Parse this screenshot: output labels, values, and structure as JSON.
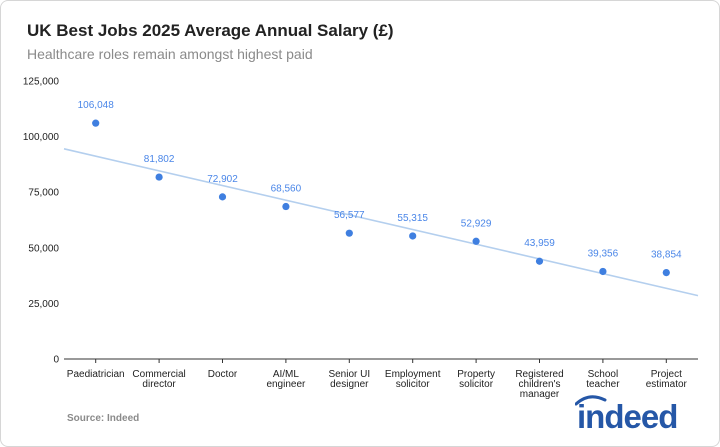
{
  "title": "UK Best Jobs 2025 Average Annual Salary (£)",
  "subtitle": "Healthcare roles remain amongst highest paid",
  "source": "Source: Indeed",
  "logo_text": "indeed",
  "colors": {
    "point": "#3f7fe0",
    "label": "#4a86e8",
    "trendline": "#b4cfee",
    "logo": "#2557a7"
  },
  "chart_data": {
    "type": "scatter",
    "title": "UK Best Jobs 2025 Average Annual Salary (£)",
    "subtitle": "Healthcare roles remain amongst highest paid",
    "categories": [
      [
        "Paediatrician"
      ],
      [
        "Commercial",
        "director"
      ],
      [
        "Doctor"
      ],
      [
        "AI/ML",
        "engineer"
      ],
      [
        "Senior UI",
        "designer"
      ],
      [
        "Employment",
        "solicitor"
      ],
      [
        "Property",
        "solicitor"
      ],
      [
        "Registered",
        "children's",
        "manager"
      ],
      [
        "School",
        "teacher"
      ],
      [
        "Project",
        "estimator"
      ]
    ],
    "values": [
      106048,
      81802,
      72902,
      68560,
      56577,
      55315,
      52929,
      43959,
      39356,
      38854
    ],
    "data_labels": [
      "106,048",
      "81,802",
      "72,902",
      "68,560",
      "56,577",
      "55,315",
      "52,929",
      "43,959",
      "39,356",
      "38,854"
    ],
    "trendline": {
      "type": "linear",
      "start": 94500,
      "end": 28500
    },
    "ylim": [
      0,
      125000
    ],
    "yticks": [
      0,
      25000,
      50000,
      75000,
      100000,
      125000
    ],
    "ytick_labels": [
      "0",
      "25,000",
      "50,000",
      "75,000",
      "100,000",
      "125,000"
    ],
    "xlabel": "",
    "ylabel": "",
    "grid": false,
    "legend": "none"
  }
}
